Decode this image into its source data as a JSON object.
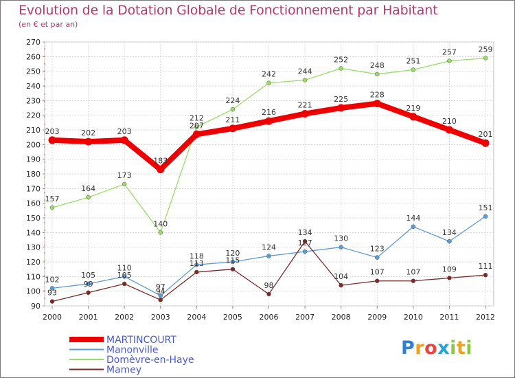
{
  "chart_data": {
    "type": "line",
    "title": "Evolution de la Dotation Globale de Fonctionnement par Habitant",
    "subtitle": "(en € et par an)",
    "x": [
      2000,
      2001,
      2002,
      2003,
      2004,
      2005,
      2006,
      2007,
      2008,
      2009,
      2010,
      2011,
      2012
    ],
    "ylim": [
      90,
      270
    ],
    "yticks": [
      90,
      100,
      110,
      120,
      130,
      140,
      150,
      160,
      170,
      180,
      190,
      200,
      210,
      220,
      230,
      240,
      250,
      260,
      270
    ],
    "grid": true,
    "series": [
      {
        "name": "MARTINCOURT",
        "color": "#ee0000",
        "values": [
          203,
          202,
          203,
          183,
          207,
          211,
          216,
          221,
          225,
          228,
          219,
          210,
          201
        ]
      },
      {
        "name": "Manonville",
        "color": "#5b9bd5",
        "values": [
          102,
          105,
          110,
          97,
          118,
          120,
          124,
          127,
          130,
          123,
          144,
          134,
          151
        ]
      },
      {
        "name": "Domèvre-en-Haye",
        "color": "#99dd66",
        "values": [
          157,
          164,
          173,
          140,
          212,
          224,
          242,
          244,
          252,
          248,
          251,
          257,
          259
        ]
      },
      {
        "name": "Mamey",
        "color": "#7b2a2a",
        "values": [
          93,
          99,
          105,
          94,
          113,
          115,
          98,
          134,
          104,
          107,
          107,
          109,
          111
        ]
      }
    ],
    "data_labels": {
      "MARTINCOURT": [
        "203",
        "202",
        "203",
        "183",
        "207",
        "211",
        "216",
        "221",
        "225",
        "228",
        "219",
        "210",
        "201"
      ],
      "Manonville": [
        "102",
        "105",
        "110",
        "97",
        "118",
        "120",
        "124",
        "127",
        "130",
        "123",
        "144",
        "134",
        "151"
      ],
      "Domèvre-en-Haye": [
        "157",
        "164",
        "173",
        "140",
        "212",
        "224",
        "242",
        "244",
        "252",
        "248",
        "251",
        "257",
        "259"
      ],
      "Mamey": [
        "93",
        "99",
        "105",
        "94",
        "113",
        "115",
        "98",
        "134",
        "104",
        "107",
        "107",
        "109",
        "111"
      ]
    },
    "legend_position": "bottom-left"
  },
  "brand": {
    "logo_parts": [
      "P",
      "r",
      "o",
      "x",
      "i",
      "t",
      "i"
    ]
  }
}
